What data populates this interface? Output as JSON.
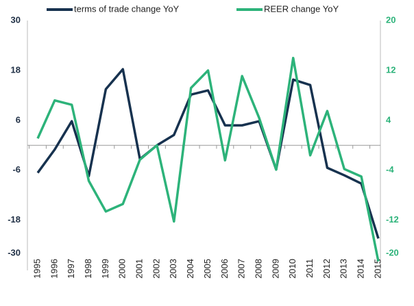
{
  "chart_data": {
    "type": "line",
    "categories": [
      "1995",
      "1996",
      "1997",
      "1998",
      "1999",
      "2000",
      "2001",
      "2002",
      "2003",
      "2004",
      "2005",
      "2006",
      "2007",
      "2008",
      "2009",
      "2010",
      "2011",
      "2012",
      "2013",
      "2014",
      "2015"
    ],
    "series": [
      {
        "name": "terms of trade change YoY",
        "color": "#17324f",
        "values": [
          -6.6,
          -1,
          5.8,
          -7.4,
          13.5,
          18.3,
          -3.3,
          0,
          2.5,
          12.2,
          13.2,
          4.8,
          4.8,
          5.8,
          -5.8,
          15.8,
          14.5,
          -5.4,
          -7.2,
          -9.2,
          -22.4
        ]
      },
      {
        "name": "REER change YoY",
        "color": "#2db37a",
        "axis": "y2",
        "values": [
          1.1,
          7.2,
          6.5,
          -5.7,
          -10.6,
          -9.4,
          -2.3,
          0,
          -12.2,
          9.2,
          12,
          -2.4,
          11.1,
          4.4,
          -3.9,
          14,
          -1.6,
          5.5,
          -3.8,
          -5,
          -18.6
        ]
      }
    ],
    "ylim": [
      -30,
      30
    ],
    "yticks": [
      -30,
      -18,
      -6,
      6,
      18,
      30
    ],
    "y2lim": [
      -20,
      20
    ],
    "y2ticks": [
      -20,
      -12,
      -4,
      4,
      12,
      20
    ]
  }
}
